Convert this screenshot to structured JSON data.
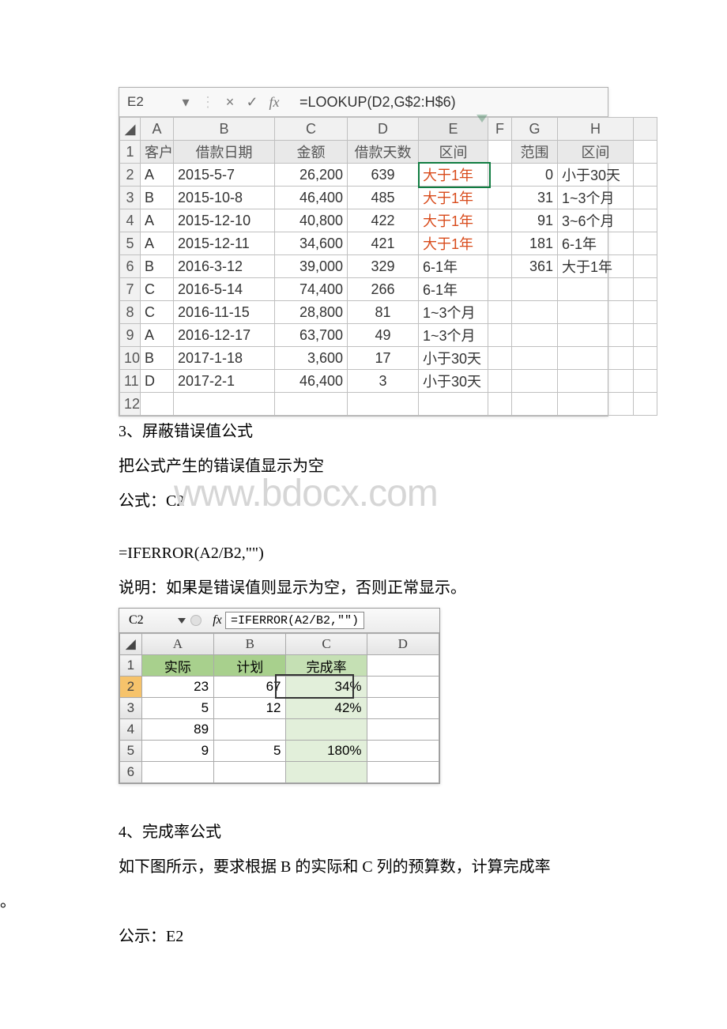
{
  "ss1": {
    "namebox": "E2",
    "formula": "=LOOKUP(D2,G$2:H$6)",
    "cols": {
      "rh": 26,
      "A": 42,
      "B": 128,
      "C": 92,
      "D": 90,
      "E": 88,
      "F": 30,
      "G": 58,
      "H": 96,
      "tail": 30
    },
    "col_labels": [
      "A",
      "B",
      "C",
      "D",
      "E",
      "F",
      "G",
      "H"
    ],
    "headers_left": [
      "客户",
      "借款日期",
      "金额",
      "借款天数",
      "区间"
    ],
    "headers_right": [
      "范围",
      "区间"
    ],
    "rows": [
      {
        "n": 2,
        "c": "A",
        "d": "2015-5-7",
        "amt": "26,200",
        "days": "639",
        "iv": "大于1年",
        "red": true,
        "g": "0",
        "h": "小于30天"
      },
      {
        "n": 3,
        "c": "B",
        "d": "2015-10-8",
        "amt": "46,400",
        "days": "485",
        "iv": "大于1年",
        "red": true,
        "g": "31",
        "h": "1~3个月"
      },
      {
        "n": 4,
        "c": "A",
        "d": "2015-12-10",
        "amt": "40,800",
        "days": "422",
        "iv": "大于1年",
        "red": true,
        "g": "91",
        "h": "3~6个月"
      },
      {
        "n": 5,
        "c": "A",
        "d": "2015-12-11",
        "amt": "34,600",
        "days": "421",
        "iv": "大于1年",
        "red": true,
        "g": "181",
        "h": "6-1年"
      },
      {
        "n": 6,
        "c": "B",
        "d": "2016-3-12",
        "amt": "39,000",
        "days": "329",
        "iv": "6-1年",
        "red": false,
        "g": "361",
        "h": "大于1年"
      },
      {
        "n": 7,
        "c": "C",
        "d": "2016-5-14",
        "amt": "74,400",
        "days": "266",
        "iv": "6-1年",
        "red": false
      },
      {
        "n": 8,
        "c": "C",
        "d": "2016-11-15",
        "amt": "28,800",
        "days": "81",
        "iv": "1~3个月",
        "red": false
      },
      {
        "n": 9,
        "c": "A",
        "d": "2016-12-17",
        "amt": "63,700",
        "days": "49",
        "iv": "1~3个月",
        "red": false
      },
      {
        "n": 10,
        "c": "B",
        "d": "2017-1-18",
        "amt": "3,600",
        "days": "17",
        "iv": "小于30天",
        "red": false
      },
      {
        "n": 11,
        "c": "D",
        "d": "2017-2-1",
        "amt": "46,400",
        "days": "3",
        "iv": "小于30天",
        "red": false
      }
    ],
    "blank_rows": [
      12
    ],
    "colors": {
      "header_bg": "#e9e9e9",
      "grid": "#c0c0c0",
      "red": "#d84a1a",
      "sel": "#107c41"
    }
  },
  "body": {
    "p1": "3、屏蔽错误值公式",
    "p2": "把公式产生的错误值显示为空",
    "p3": "公式：C2",
    "watermark": "www.bdocx.com",
    "p4": "=IFERROR(A2/B2,\"\")",
    "p5": "说明：如果是错误值则显示为空，否则正常显示。",
    "p6": "4、完成率公式",
    "p7": "如下图所示，要求根据 B 的实际和 C 列的预算数，计算完成率",
    "p7b": "。",
    "p8": "公示：E2"
  },
  "ss2": {
    "namebox": "C2",
    "formula": "=IFERROR(A2/B2,\"\")",
    "col_labels": [
      "A",
      "B",
      "C",
      "D"
    ],
    "headers": [
      "实际",
      "计划",
      "完成率"
    ],
    "rows": [
      {
        "n": 2,
        "a": "23",
        "b": "67",
        "c": "34%",
        "sel": true
      },
      {
        "n": 3,
        "a": "5",
        "b": "12",
        "c": "42%"
      },
      {
        "n": 4,
        "a": "89",
        "b": "",
        "c": ""
      },
      {
        "n": 5,
        "a": "9",
        "b": "5",
        "c": "180%"
      }
    ],
    "blank_rows": [
      6
    ],
    "cols": {
      "rh": 26,
      "A": 86,
      "B": 86,
      "C": 96,
      "D": 86
    },
    "colors": {
      "g1": "#a8d08d",
      "g2": "#c5e0b4",
      "g3": "#e2efda",
      "sel_rh": "#f6c36b"
    }
  }
}
